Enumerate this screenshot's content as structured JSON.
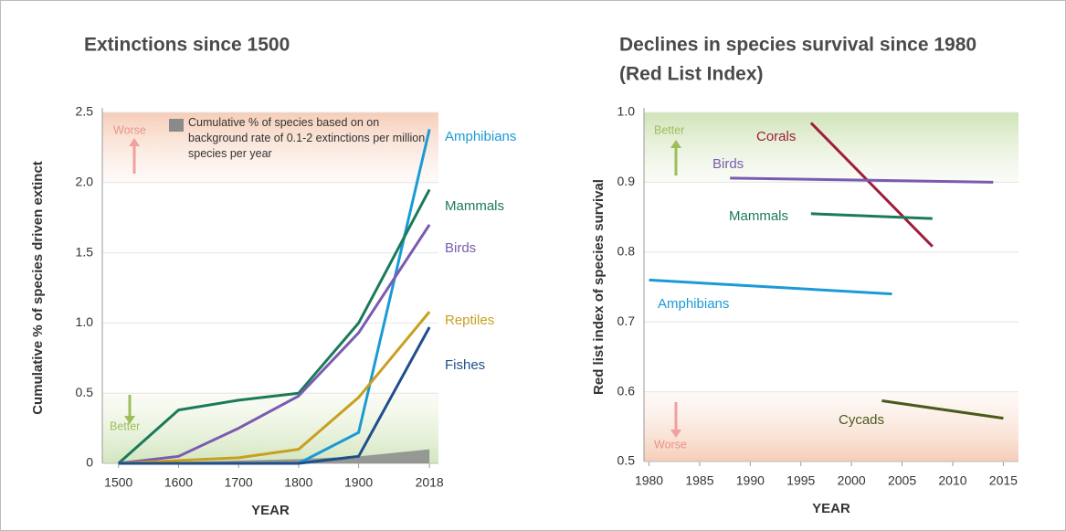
{
  "chart_data": [
    {
      "type": "line",
      "title": "Extinctions since 1500",
      "y_label": "Cumulative % of species driven extinct",
      "x_label": "YEAR",
      "x": [
        1500,
        1600,
        1700,
        1800,
        1900,
        2018
      ],
      "xlim": [
        1473,
        2033
      ],
      "xticks": [
        1500,
        1600,
        1700,
        1800,
        1900,
        2018
      ],
      "ylim": [
        0,
        2.5
      ],
      "yticks": [
        0,
        0.5,
        {
          "value": 1,
          "label": "1.0"
        },
        1.5,
        {
          "value": 2,
          "label": "2.0"
        },
        2.5
      ],
      "grid": true,
      "annotations": [
        "Worse",
        "Better"
      ],
      "area": {
        "name": "Cumulative % of species based on on background rate of 0.1-2 extinctions per million species per year",
        "color": "#8a8a8a",
        "values": [
          0,
          0.01,
          0.02,
          0.03,
          0.05,
          0.1
        ]
      },
      "series": [
        {
          "name": "Amphibians",
          "color": "#1a9ad6",
          "values": [
            0,
            0,
            0,
            0,
            0.22,
            2.38
          ]
        },
        {
          "name": "Mammals",
          "color": "#1b7a5a",
          "values": [
            0,
            0.38,
            0.45,
            0.5,
            1.0,
            1.95
          ]
        },
        {
          "name": "Birds",
          "color": "#7a5bb0",
          "values": [
            0,
            0.05,
            0.25,
            0.48,
            0.93,
            1.7
          ]
        },
        {
          "name": "Reptiles",
          "color": "#c8a020",
          "values": [
            0,
            0.02,
            0.04,
            0.1,
            0.47,
            1.08
          ]
        },
        {
          "name": "Fishes",
          "color": "#1f4e8c",
          "values": [
            0,
            0,
            0,
            0,
            0.05,
            0.97
          ]
        }
      ]
    },
    {
      "type": "line",
      "title": "Declines in species survival since 1980",
      "subtitle": "(Red List Index)",
      "y_label": "Red list index of species survival",
      "x_label": "YEAR",
      "xlim": [
        1979.5,
        2016.5
      ],
      "xticks": [
        1980,
        1985,
        1990,
        1995,
        2000,
        2005,
        2010,
        2015
      ],
      "ylim": [
        0.5,
        1.0
      ],
      "yticks": [
        0.5,
        0.6,
        0.7,
        0.8,
        0.9,
        {
          "value": 1,
          "label": "1.0"
        }
      ],
      "grid": true,
      "annotations": [
        "Better",
        "Worse"
      ],
      "series": [
        {
          "name": "Corals",
          "color": "#a01c3a",
          "x": [
            1996,
            2008
          ],
          "values": [
            0.985,
            0.808
          ]
        },
        {
          "name": "Birds",
          "color": "#7a5bb0",
          "x": [
            1988,
            2014
          ],
          "values": [
            0.906,
            0.9
          ]
        },
        {
          "name": "Mammals",
          "color": "#1b7a5a",
          "x": [
            1996,
            2008
          ],
          "values": [
            0.855,
            0.848
          ]
        },
        {
          "name": "Amphibians",
          "color": "#1a9ad6",
          "x": [
            1980,
            2004
          ],
          "values": [
            0.76,
            0.74
          ]
        },
        {
          "name": "Cycads",
          "color": "#4a5a1a",
          "x": [
            2003,
            2015
          ],
          "values": [
            0.587,
            0.562
          ]
        }
      ]
    }
  ]
}
